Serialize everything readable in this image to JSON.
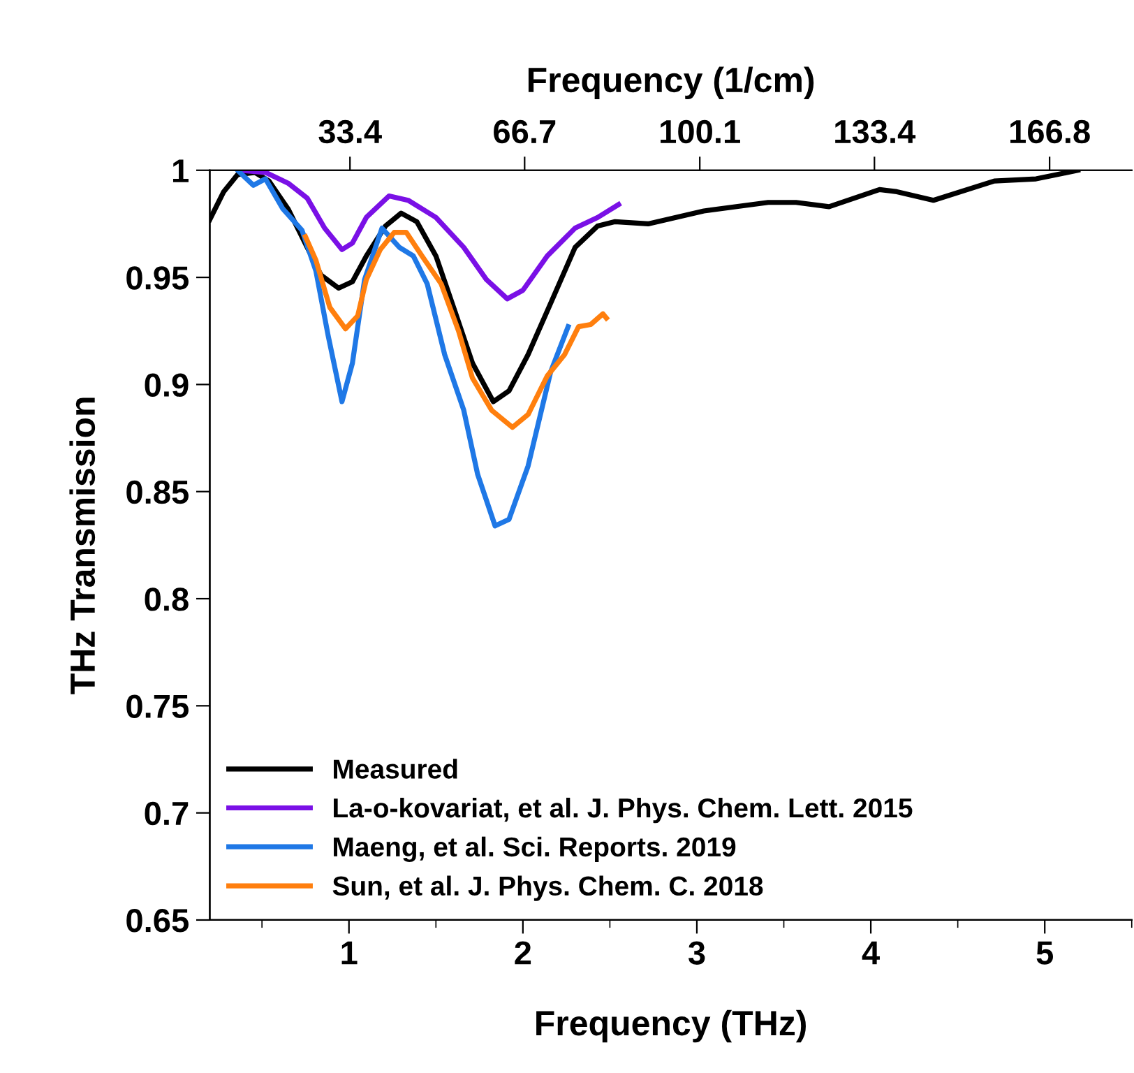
{
  "chart_data": {
    "type": "line",
    "xlabel": "Frequency (THz)",
    "ylabel": "THz Transmission",
    "x2label": "Frequency (1/cm)",
    "xlim": [
      0.2,
      5.47
    ],
    "xticks": [
      1,
      2,
      3,
      4,
      5
    ],
    "ylim": [
      0.65,
      1
    ],
    "yticks": [
      0.65,
      0.7,
      0.75,
      0.8,
      0.85,
      0.9,
      0.95,
      1
    ],
    "x2lim": [
      6.67,
      182.46
    ],
    "x2ticks": [
      33.4,
      66.7,
      100.1,
      133.4,
      166.8
    ],
    "grid": false,
    "legend": "bottom left",
    "marker": "none",
    "line_style": "solid",
    "series": [
      {
        "name": "Measured",
        "color": "#000000",
        "x": [
          0.2,
          0.28,
          0.36,
          0.46,
          0.54,
          0.65,
          0.76,
          0.84,
          0.94,
          1.02,
          1.1,
          1.21,
          1.3,
          1.39,
          1.5,
          1.61,
          1.71,
          1.83,
          1.92,
          2.03,
          2.16,
          2.3,
          2.43,
          2.53,
          2.72,
          3.04,
          3.41,
          3.57,
          3.76,
          4.05,
          4.15,
          4.36,
          4.71,
          4.95,
          5.19
        ],
        "values": [
          0.977,
          0.99,
          0.998,
          0.999,
          0.995,
          0.982,
          0.964,
          0.951,
          0.945,
          0.948,
          0.96,
          0.974,
          0.98,
          0.976,
          0.96,
          0.934,
          0.91,
          0.892,
          0.897,
          0.914,
          0.938,
          0.964,
          0.974,
          0.976,
          0.975,
          0.981,
          0.985,
          0.985,
          0.983,
          0.991,
          0.99,
          0.986,
          0.995,
          0.996,
          1.0
        ]
      },
      {
        "name": "La-o-kovariat, et al. J. Phys. Chem. Lett. 2015",
        "color": "#7a10e6",
        "x": [
          0.37,
          0.52,
          0.65,
          0.76,
          0.86,
          0.96,
          1.02,
          1.1,
          1.23,
          1.34,
          1.5,
          1.66,
          1.79,
          1.91,
          2.0,
          2.14,
          2.3,
          2.43,
          2.55
        ],
        "values": [
          1.0,
          0.999,
          0.994,
          0.987,
          0.973,
          0.963,
          0.966,
          0.978,
          0.988,
          0.986,
          0.978,
          0.964,
          0.949,
          0.94,
          0.944,
          0.96,
          0.973,
          0.978,
          0.984
        ]
      },
      {
        "name": "Maeng, et al. Sci. Reports. 2019",
        "color": "#1f78e6",
        "x": [
          0.36,
          0.45,
          0.52,
          0.62,
          0.73,
          0.81,
          0.88,
          0.96,
          1.02,
          1.09,
          1.19,
          1.29,
          1.37,
          1.45,
          1.55,
          1.66,
          1.74,
          1.84,
          1.92,
          2.03,
          2.16,
          2.26
        ],
        "values": [
          1.0,
          0.993,
          0.996,
          0.982,
          0.972,
          0.953,
          0.923,
          0.892,
          0.91,
          0.949,
          0.973,
          0.964,
          0.96,
          0.947,
          0.914,
          0.888,
          0.858,
          0.834,
          0.837,
          0.862,
          0.906,
          0.927
        ]
      },
      {
        "name": "Sun, et al. J. Phys. Chem. C. 2018",
        "color": "#ff7f0e",
        "x": [
          0.75,
          0.81,
          0.89,
          0.98,
          1.05,
          1.1,
          1.18,
          1.26,
          1.33,
          1.42,
          1.53,
          1.63,
          1.71,
          1.82,
          1.94,
          2.03,
          2.14,
          2.24,
          2.32,
          2.39,
          2.46,
          2.48
        ],
        "values": [
          0.969,
          0.958,
          0.936,
          0.926,
          0.932,
          0.949,
          0.963,
          0.971,
          0.971,
          0.96,
          0.947,
          0.925,
          0.903,
          0.888,
          0.88,
          0.886,
          0.904,
          0.914,
          0.927,
          0.928,
          0.933,
          0.931
        ]
      }
    ]
  }
}
